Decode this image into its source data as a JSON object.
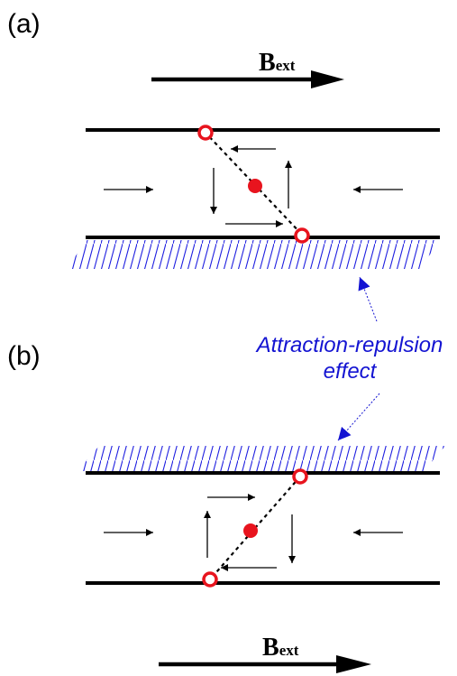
{
  "colors": {
    "line": "#000000",
    "hatch": "#1e1ee0",
    "particle": "#e8141e",
    "annotation": "#1414d2"
  },
  "panel_a": {
    "label": "(a)"
  },
  "panel_b": {
    "label": "(b)"
  },
  "field": {
    "symbol": "B",
    "subscript": "ext"
  },
  "annotation": {
    "line1": "Attraction-repulsion",
    "line2": "effect"
  },
  "icons": [
    "field-arrow-icon",
    "particle-icon",
    "wall-hatch-icon",
    "force-arrow-icon"
  ]
}
